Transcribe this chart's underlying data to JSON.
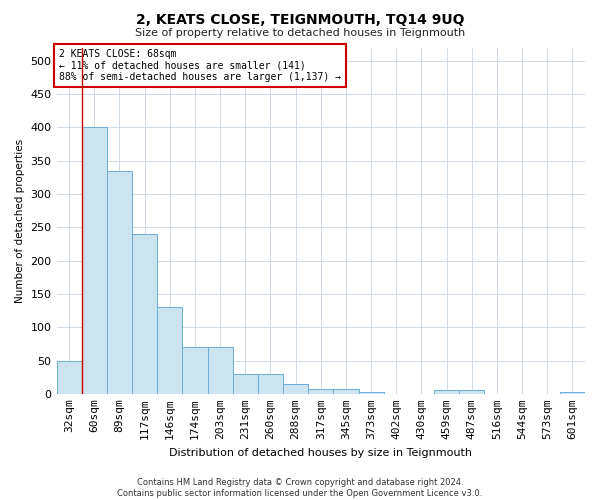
{
  "title": "2, KEATS CLOSE, TEIGNMOUTH, TQ14 9UQ",
  "subtitle": "Size of property relative to detached houses in Teignmouth",
  "xlabel": "Distribution of detached houses by size in Teignmouth",
  "ylabel": "Number of detached properties",
  "footer_line1": "Contains HM Land Registry data © Crown copyright and database right 2024.",
  "footer_line2": "Contains public sector information licensed under the Open Government Licence v3.0.",
  "annotation_line1": "2 KEATS CLOSE: 68sqm",
  "annotation_line2": "← 11% of detached houses are smaller (141)",
  "annotation_line3": "88% of semi-detached houses are larger (1,137) →",
  "bar_categories": [
    "32sqm",
    "60sqm",
    "89sqm",
    "117sqm",
    "146sqm",
    "174sqm",
    "203sqm",
    "231sqm",
    "260sqm",
    "288sqm",
    "317sqm",
    "345sqm",
    "373sqm",
    "402sqm",
    "430sqm",
    "459sqm",
    "487sqm",
    "516sqm",
    "544sqm",
    "573sqm",
    "601sqm"
  ],
  "bar_values": [
    50,
    400,
    335,
    240,
    130,
    70,
    70,
    30,
    30,
    14,
    7,
    7,
    3,
    0,
    0,
    5,
    5,
    0,
    0,
    0,
    3
  ],
  "bar_color": "#cce4f0",
  "bar_edge_color": "#6aaed6",
  "vline_color": "#cc0000",
  "vline_x_index": 1,
  "annotation_box_color": "#cc0000",
  "background_color": "#ffffff",
  "grid_color": "#c8d4e0",
  "ylim": [
    0,
    520
  ],
  "yticks": [
    0,
    50,
    100,
    150,
    200,
    250,
    300,
    350,
    400,
    450,
    500
  ]
}
